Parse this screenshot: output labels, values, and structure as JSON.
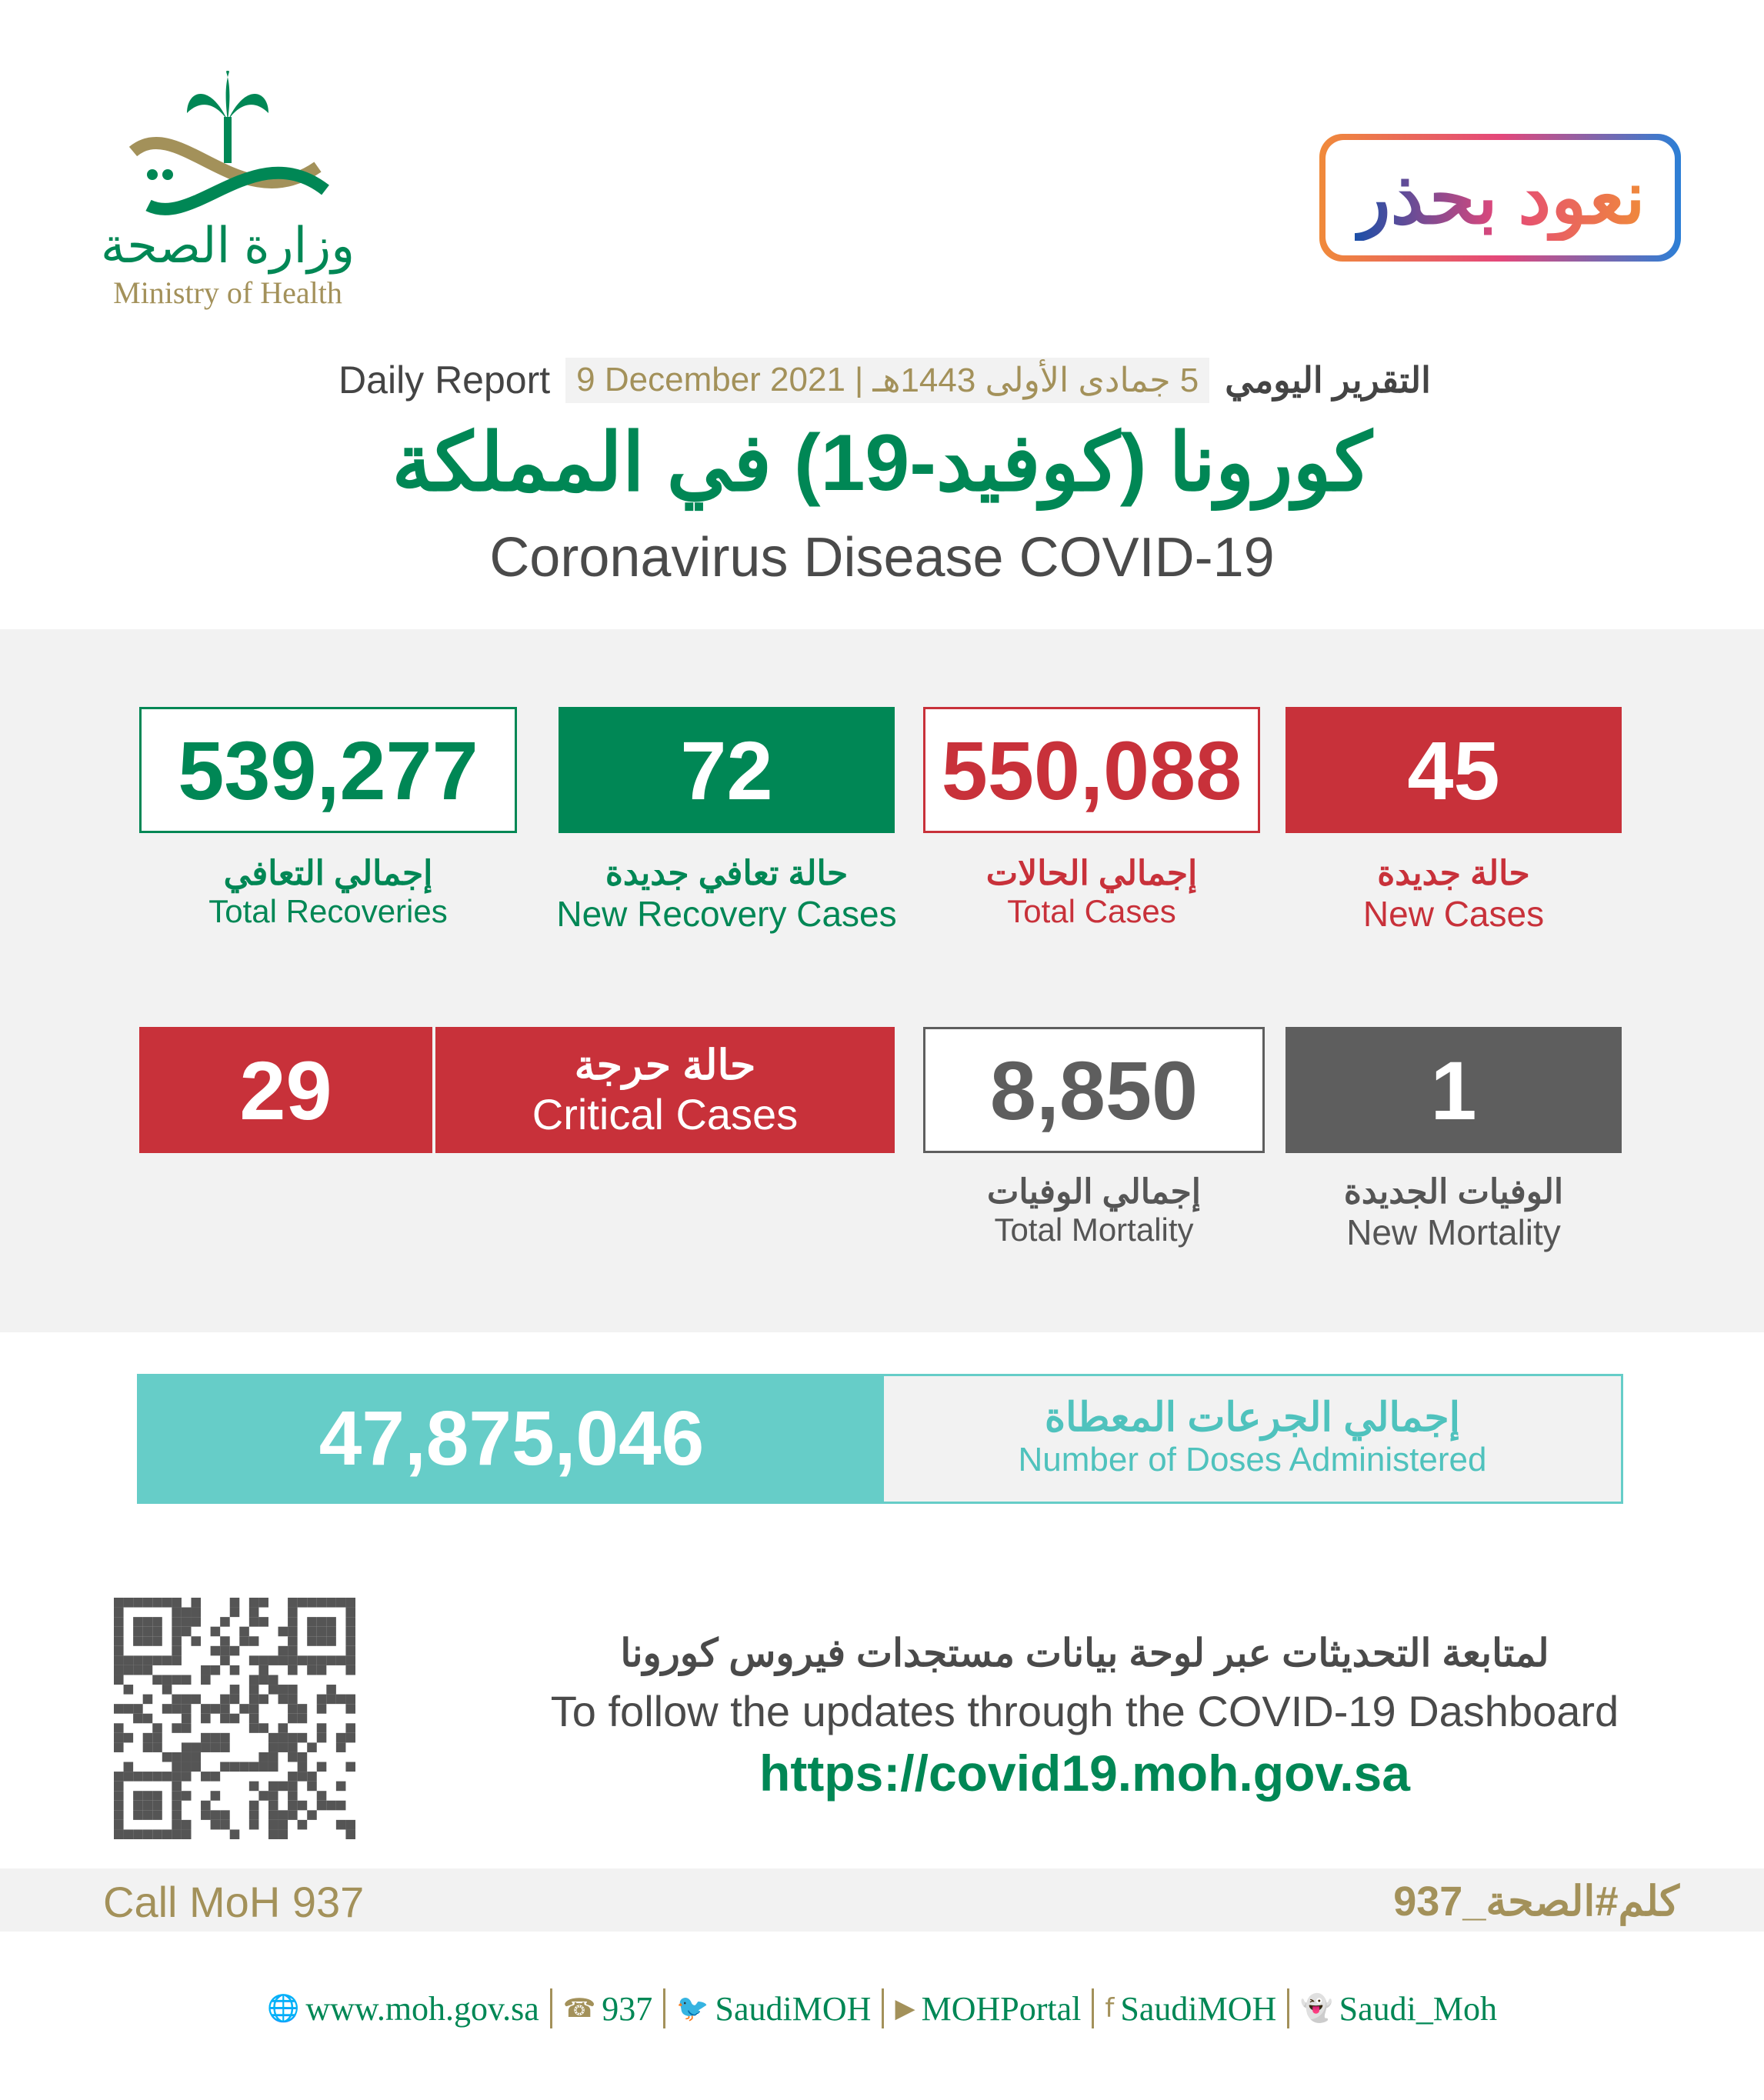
{
  "header": {
    "ministry_ar": "وزارة الصحة",
    "ministry_en": "Ministry of Health",
    "campaign_logo": "نعود بحذر",
    "daily_report_en": "Daily Report",
    "date_gregorian": "9 December 2021",
    "date_hijri": "5 جمادى الأولى 1443هـ",
    "daily_report_ar": "التقرير اليومي",
    "title_ar": "كورونا (كوفيد-19) في المملكة",
    "title_en": "Coronavirus Disease COVID-19"
  },
  "stats": {
    "total_recoveries": {
      "value": "539,277",
      "ar": "إجمالي التعافي",
      "en": "Total Recoveries"
    },
    "new_recoveries": {
      "value": "72",
      "ar": "حالة تعافي جديدة",
      "en": "New Recovery Cases"
    },
    "total_cases": {
      "value": "550,088",
      "ar": "إجمالي الحالات",
      "en": "Total Cases"
    },
    "new_cases": {
      "value": "45",
      "ar": "حالة جديدة",
      "en": "New Cases"
    },
    "critical": {
      "value": "29",
      "ar": "حالة حرجة",
      "en": "Critical Cases"
    },
    "total_mortality": {
      "value": "8,850",
      "ar": "إجمالي الوفيات",
      "en": "Total Mortality"
    },
    "new_mortality": {
      "value": "1",
      "ar": "الوفيات الجديدة",
      "en": "New Mortality"
    }
  },
  "doses": {
    "value": "47,875,046",
    "ar": "إجمالي الجرعات المعطاة",
    "en": "Number of Doses Administered"
  },
  "follow": {
    "ar": "لمتابعة التحديثات عبر لوحة بيانات مستجدات فيروس كورونا",
    "en": "To follow the updates through the COVID-19 Dashboard",
    "url": "https://covid19.moh.gov.sa"
  },
  "footer": {
    "call": "Call MoH 937",
    "hashtag": "كلم#الصحة_937",
    "social": [
      {
        "icon": "globe-icon",
        "text": "www.moh.gov.sa"
      },
      {
        "icon": "phone-icon",
        "text": "937"
      },
      {
        "icon": "twitter-icon",
        "text": "SaudiMOH"
      },
      {
        "icon": "youtube-icon",
        "text": "MOHPortal"
      },
      {
        "icon": "facebook-icon",
        "text": "SaudiMOH"
      },
      {
        "icon": "snapchat-icon",
        "text": "Saudi_Moh"
      }
    ]
  },
  "colors": {
    "green": "#008755",
    "red": "#c8313a",
    "gray": "#5e5e5e",
    "teal": "#66cdc8",
    "gold": "#a3915a"
  }
}
